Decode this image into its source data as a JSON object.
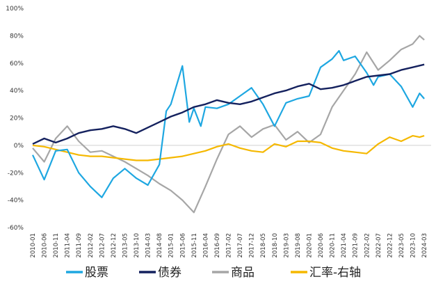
{
  "chart_data": {
    "type": "line",
    "y_axis": {
      "ticks": [
        "100%",
        "80%",
        "60%",
        "40%",
        "20%",
        "0%",
        "-20%",
        "-40%",
        "-60%"
      ],
      "ylim": [
        -60,
        100
      ]
    },
    "x_axis": {
      "ticks": [
        "2010-01",
        "2010-06",
        "2010-11",
        "2011-04",
        "2011-09",
        "2012-02",
        "2012-07",
        "2012-12",
        "2013-05",
        "2013-10",
        "2014-03",
        "2014-08",
        "2015-01",
        "2015-06",
        "2015-11",
        "2016-04",
        "2016-09",
        "2017-02",
        "2017-07",
        "2017-12",
        "2018-05",
        "2018-10",
        "2019-03",
        "2019-08",
        "2020-01",
        "2020-06",
        "2020-11",
        "2021-04",
        "2021-09",
        "2022-02",
        "2022-07",
        "2022-12",
        "2023-05",
        "2023-10",
        "2024-03"
      ]
    },
    "series": [
      {
        "name": "股票",
        "color": "#1ea7e1",
        "points": [
          [
            "2010-01",
            -7
          ],
          [
            "2010-06",
            -25
          ],
          [
            "2010-11",
            -4
          ],
          [
            "2011-04",
            -3
          ],
          [
            "2011-09",
            -20
          ],
          [
            "2012-02",
            -30
          ],
          [
            "2012-07",
            -38
          ],
          [
            "2012-12",
            -24
          ],
          [
            "2013-05",
            -17
          ],
          [
            "2013-10",
            -24
          ],
          [
            "2014-03",
            -29
          ],
          [
            "2014-08",
            -14
          ],
          [
            "2014-11",
            25
          ],
          [
            "2015-01",
            30
          ],
          [
            "2015-06",
            58
          ],
          [
            "2015-09",
            17
          ],
          [
            "2015-11",
            27
          ],
          [
            "2016-02",
            14
          ],
          [
            "2016-04",
            28
          ],
          [
            "2016-09",
            27
          ],
          [
            "2017-02",
            30
          ],
          [
            "2017-07",
            36
          ],
          [
            "2017-12",
            42
          ],
          [
            "2018-05",
            30
          ],
          [
            "2018-10",
            14
          ],
          [
            "2019-03",
            31
          ],
          [
            "2019-08",
            34
          ],
          [
            "2020-01",
            36
          ],
          [
            "2020-06",
            57
          ],
          [
            "2020-11",
            63
          ],
          [
            "2021-02",
            69
          ],
          [
            "2021-04",
            62
          ],
          [
            "2021-09",
            65
          ],
          [
            "2022-02",
            53
          ],
          [
            "2022-05",
            44
          ],
          [
            "2022-07",
            50
          ],
          [
            "2022-12",
            52
          ],
          [
            "2023-05",
            43
          ],
          [
            "2023-10",
            28
          ],
          [
            "2024-01",
            38
          ],
          [
            "2024-03",
            34
          ]
        ]
      },
      {
        "name": "债券",
        "color": "#14215e",
        "points": [
          [
            "2010-01",
            1
          ],
          [
            "2010-06",
            5
          ],
          [
            "2010-11",
            2
          ],
          [
            "2011-04",
            5
          ],
          [
            "2011-09",
            9
          ],
          [
            "2012-02",
            11
          ],
          [
            "2012-07",
            12
          ],
          [
            "2012-12",
            14
          ],
          [
            "2013-05",
            12
          ],
          [
            "2013-10",
            9
          ],
          [
            "2014-03",
            13
          ],
          [
            "2014-08",
            17
          ],
          [
            "2015-01",
            21
          ],
          [
            "2015-06",
            24
          ],
          [
            "2015-11",
            28
          ],
          [
            "2016-04",
            30
          ],
          [
            "2016-09",
            33
          ],
          [
            "2017-02",
            31
          ],
          [
            "2017-07",
            30
          ],
          [
            "2017-12",
            32
          ],
          [
            "2018-05",
            35
          ],
          [
            "2018-10",
            38
          ],
          [
            "2019-03",
            40
          ],
          [
            "2019-08",
            43
          ],
          [
            "2020-01",
            45
          ],
          [
            "2020-06",
            41
          ],
          [
            "2020-11",
            42
          ],
          [
            "2021-04",
            44
          ],
          [
            "2021-09",
            47
          ],
          [
            "2022-02",
            50
          ],
          [
            "2022-07",
            51
          ],
          [
            "2022-12",
            52
          ],
          [
            "2023-05",
            55
          ],
          [
            "2023-10",
            57
          ],
          [
            "2024-03",
            59
          ]
        ]
      },
      {
        "name": "商品",
        "color": "#a6a6a6",
        "points": [
          [
            "2010-01",
            -2
          ],
          [
            "2010-06",
            -12
          ],
          [
            "2010-11",
            5
          ],
          [
            "2011-04",
            14
          ],
          [
            "2011-09",
            3
          ],
          [
            "2012-02",
            -5
          ],
          [
            "2012-07",
            -4
          ],
          [
            "2012-12",
            -8
          ],
          [
            "2013-05",
            -12
          ],
          [
            "2013-10",
            -17
          ],
          [
            "2014-03",
            -22
          ],
          [
            "2014-08",
            -28
          ],
          [
            "2015-01",
            -33
          ],
          [
            "2015-06",
            -40
          ],
          [
            "2015-11",
            -49
          ],
          [
            "2016-04",
            -30
          ],
          [
            "2016-09",
            -10
          ],
          [
            "2017-02",
            8
          ],
          [
            "2017-07",
            14
          ],
          [
            "2017-12",
            6
          ],
          [
            "2018-05",
            12
          ],
          [
            "2018-10",
            15
          ],
          [
            "2019-03",
            4
          ],
          [
            "2019-08",
            10
          ],
          [
            "2020-01",
            2
          ],
          [
            "2020-06",
            8
          ],
          [
            "2020-11",
            28
          ],
          [
            "2021-04",
            40
          ],
          [
            "2021-09",
            52
          ],
          [
            "2022-02",
            68
          ],
          [
            "2022-07",
            55
          ],
          [
            "2022-12",
            62
          ],
          [
            "2023-05",
            70
          ],
          [
            "2023-10",
            74
          ],
          [
            "2024-01",
            80
          ],
          [
            "2024-03",
            77
          ]
        ]
      },
      {
        "name": "汇率-右轴",
        "color": "#f5b800",
        "points": [
          [
            "2010-01",
            0
          ],
          [
            "2010-06",
            -1
          ],
          [
            "2010-11",
            -3
          ],
          [
            "2011-04",
            -5
          ],
          [
            "2011-09",
            -7
          ],
          [
            "2012-02",
            -8
          ],
          [
            "2012-07",
            -8
          ],
          [
            "2012-12",
            -9
          ],
          [
            "2013-05",
            -10
          ],
          [
            "2013-10",
            -11
          ],
          [
            "2014-03",
            -11
          ],
          [
            "2014-08",
            -10
          ],
          [
            "2015-01",
            -9
          ],
          [
            "2015-06",
            -8
          ],
          [
            "2015-11",
            -6
          ],
          [
            "2016-04",
            -4
          ],
          [
            "2016-09",
            -1
          ],
          [
            "2017-02",
            1
          ],
          [
            "2017-07",
            -2
          ],
          [
            "2017-12",
            -4
          ],
          [
            "2018-05",
            -5
          ],
          [
            "2018-10",
            1
          ],
          [
            "2019-03",
            -1
          ],
          [
            "2019-08",
            3
          ],
          [
            "2020-01",
            3
          ],
          [
            "2020-06",
            2
          ],
          [
            "2020-11",
            -2
          ],
          [
            "2021-04",
            -4
          ],
          [
            "2021-09",
            -5
          ],
          [
            "2022-02",
            -6
          ],
          [
            "2022-07",
            1
          ],
          [
            "2022-12",
            6
          ],
          [
            "2023-05",
            3
          ],
          [
            "2023-10",
            7
          ],
          [
            "2024-01",
            6
          ],
          [
            "2024-03",
            7
          ]
        ]
      }
    ],
    "legend": {
      "position": "bottom"
    },
    "grid": false
  }
}
